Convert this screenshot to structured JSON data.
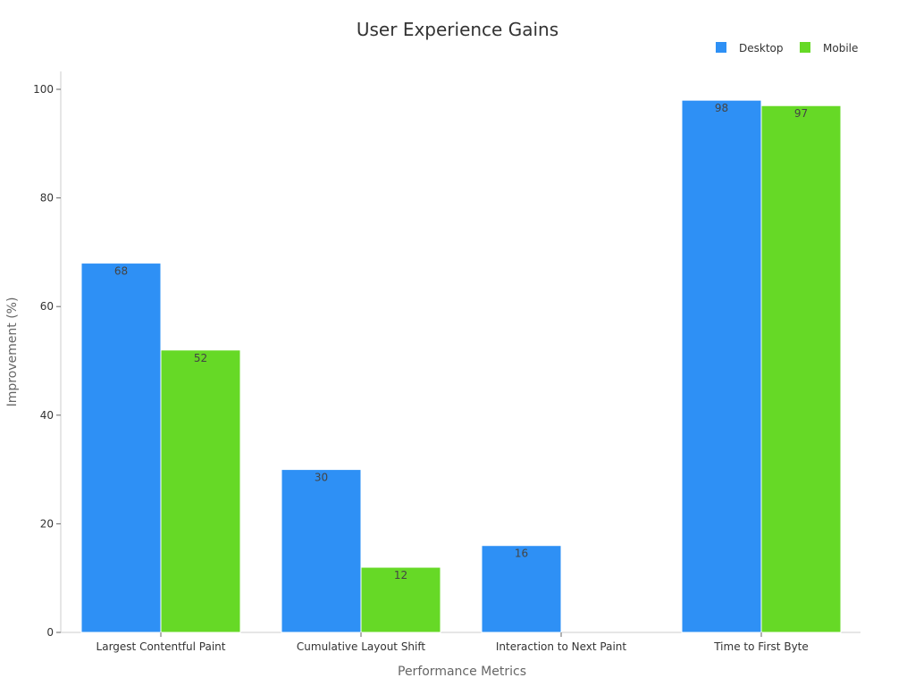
{
  "chart_data": {
    "type": "bar",
    "title": "User Experience Gains",
    "xlabel": "Performance Metrics",
    "ylabel": "Improvement (%)",
    "categories": [
      "Largest Contentful Paint",
      "Cumulative Layout Shift",
      "Interaction to Next Paint",
      "Time to First Byte"
    ],
    "series": [
      {
        "name": "Desktop",
        "color": "#2e90f5",
        "values": [
          68,
          30,
          16,
          98
        ]
      },
      {
        "name": "Mobile",
        "color": "#66d926",
        "values": [
          52,
          12,
          null,
          97
        ]
      }
    ],
    "ylim": [
      0,
      100
    ],
    "yticks": [
      0,
      20,
      40,
      60,
      80,
      100
    ],
    "grid": false,
    "legend_position": "top-right"
  }
}
